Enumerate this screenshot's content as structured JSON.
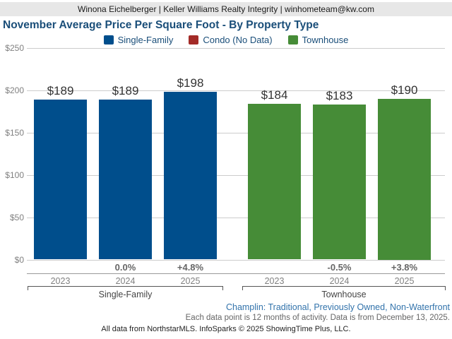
{
  "header": {
    "contact_line": "Winona Eichelberger | Keller Williams Realty Integrity | winhometeam@kw.com"
  },
  "chart_data": {
    "type": "bar",
    "title": "November Average Price Per Square Foot - By Property Type",
    "ylim": [
      0,
      250
    ],
    "ytick_values": [
      250,
      200,
      150,
      100,
      50,
      0
    ],
    "ytick_labels": [
      "$250",
      "$200",
      "$150",
      "$100",
      "$50",
      "$0"
    ],
    "grid": true,
    "legend_position": "top",
    "groups": [
      {
        "name": "Single-Family",
        "color": "#004e8c",
        "years": [
          "2023",
          "2024",
          "2025"
        ],
        "values": [
          189,
          189,
          198
        ],
        "value_labels": [
          "$189",
          "$189",
          "$198"
        ],
        "pct_change": [
          "",
          "0.0%",
          "+4.8%"
        ]
      },
      {
        "name": "Condo (No Data)",
        "color": "#a32b27",
        "years": [],
        "values": [],
        "value_labels": [],
        "pct_change": []
      },
      {
        "name": "Townhouse",
        "color": "#468c37",
        "years": [
          "2023",
          "2024",
          "2025"
        ],
        "values": [
          184,
          183,
          190
        ],
        "value_labels": [
          "$184",
          "$183",
          "$190"
        ],
        "pct_change": [
          "",
          "-0.5%",
          "+3.8%"
        ]
      }
    ]
  },
  "footer": {
    "filter_line": "Champlin: Traditional, Previously Owned, Non-Waterfront",
    "data_note": "Each data point is 12 months of activity. Data is from December 13, 2025.",
    "attribution": "All data from NorthstarMLS. InfoSparks © 2025 ShowingTime Plus, LLC."
  }
}
